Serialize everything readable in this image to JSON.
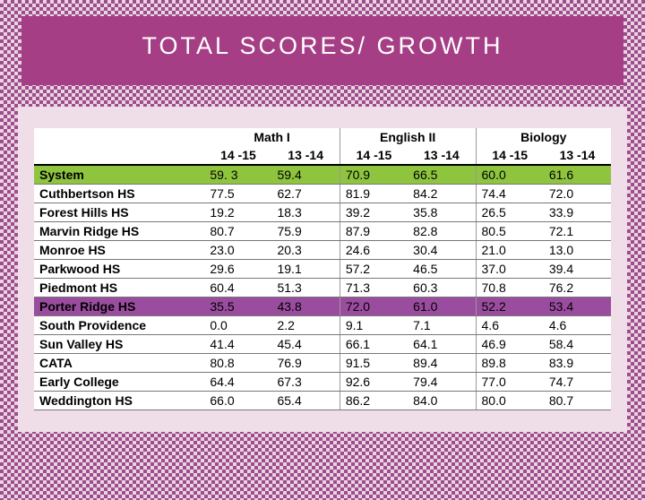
{
  "title": "TOTAL SCORES/ GROWTH",
  "colors": {
    "title_bg": "#a53e85",
    "title_text": "#ffffff",
    "content_bg": "#efdde8",
    "table_bg": "#ffffff",
    "row_system_bg": "#8fc43f",
    "row_porter_bg": "#9a4d9e",
    "border": "#777777",
    "header_border": "#000000"
  },
  "subjects": [
    {
      "name": "Math I",
      "years": [
        "14 -15",
        "13 -14"
      ]
    },
    {
      "name": "English II",
      "years": [
        "14 -15",
        "13 -14"
      ]
    },
    {
      "name": "Biology",
      "years": [
        "14 -15",
        "13 -14"
      ]
    }
  ],
  "rows": [
    {
      "label": "System",
      "highlight": "system",
      "values": [
        "59. 3",
        "59.4",
        "70.9",
        "66.5",
        "60.0",
        "61.6"
      ]
    },
    {
      "label": "Cuthbertson HS",
      "values": [
        "77.5",
        "62.7",
        "81.9",
        "84.2",
        "74.4",
        "72.0"
      ]
    },
    {
      "label": "Forest Hills HS",
      "values": [
        "19.2",
        "18.3",
        "39.2",
        "35.8",
        "26.5",
        "33.9"
      ]
    },
    {
      "label": "Marvin Ridge HS",
      "values": [
        "80.7",
        "75.9",
        "87.9",
        "82.8",
        "80.5",
        "72.1"
      ]
    },
    {
      "label": "Monroe HS",
      "values": [
        "23.0",
        "20.3",
        "24.6",
        "30.4",
        "21.0",
        "13.0"
      ]
    },
    {
      "label": "Parkwood HS",
      "values": [
        "29.6",
        "19.1",
        "57.2",
        "46.5",
        "37.0",
        "39.4"
      ]
    },
    {
      "label": "Piedmont HS",
      "values": [
        "60.4",
        "51.3",
        "71.3",
        "60.3",
        "70.8",
        "76.2"
      ]
    },
    {
      "label": "Porter Ridge HS",
      "highlight": "porter",
      "values": [
        "35.5",
        "43.8",
        "72.0",
        "61.0",
        "52.2",
        "53.4"
      ]
    },
    {
      "label": "South Providence",
      "values": [
        "0.0",
        "2.2",
        "9.1",
        "7.1",
        "4.6",
        "4.6"
      ]
    },
    {
      "label": "Sun Valley HS",
      "values": [
        "41.4",
        "45.4",
        "66.1",
        "64.1",
        "46.9",
        "58.4"
      ]
    },
    {
      "label": "CATA",
      "values": [
        "80.8",
        "76.9",
        "91.5",
        "89.4",
        "89.8",
        "83.9"
      ]
    },
    {
      "label": "Early College",
      "values": [
        "64.4",
        "67.3",
        "92.6",
        "79.4",
        "77.0",
        "74.7"
      ]
    },
    {
      "label": "Weddington HS",
      "values": [
        "66.0",
        "65.4",
        "86.2",
        "84.0",
        "80.0",
        "80.7"
      ]
    }
  ]
}
